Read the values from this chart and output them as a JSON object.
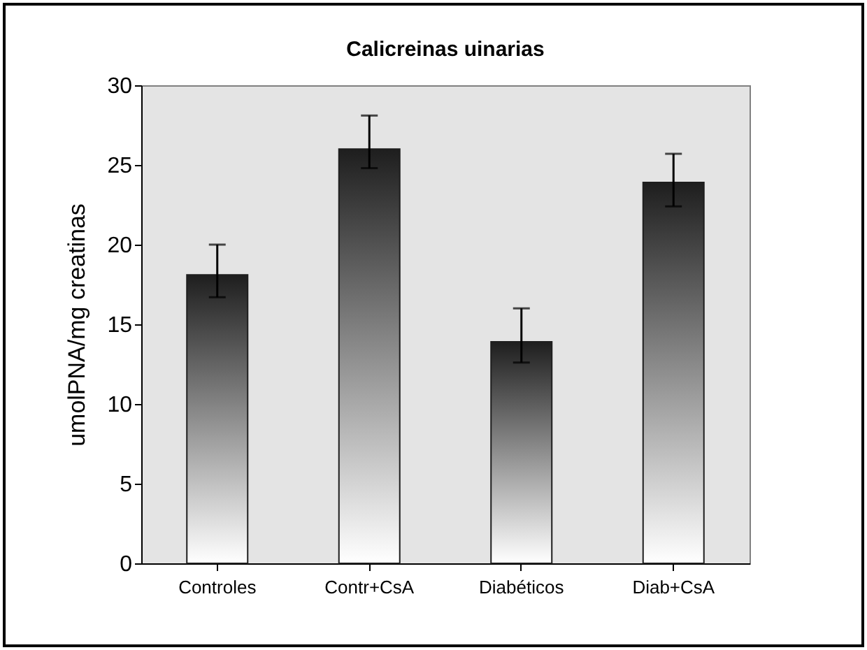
{
  "chart_data": {
    "type": "bar",
    "title": "Calicreinas uinarias",
    "ylabel": "umolPNA/mg creatinas",
    "categories": [
      "Controles",
      "Contr+CsA",
      "Diabéticos",
      "Diab+CsA"
    ],
    "values": [
      18.1,
      26.0,
      13.9,
      23.9
    ],
    "errors": [
      [
        16.7,
        20.0
      ],
      [
        24.8,
        28.1
      ],
      [
        12.6,
        16.0
      ],
      [
        22.4,
        25.7
      ]
    ],
    "color": "#1e1e1e",
    "ylim": [
      0,
      30
    ],
    "yticks": [
      0,
      5,
      10,
      15,
      20,
      25,
      30
    ],
    "grid": false
  }
}
